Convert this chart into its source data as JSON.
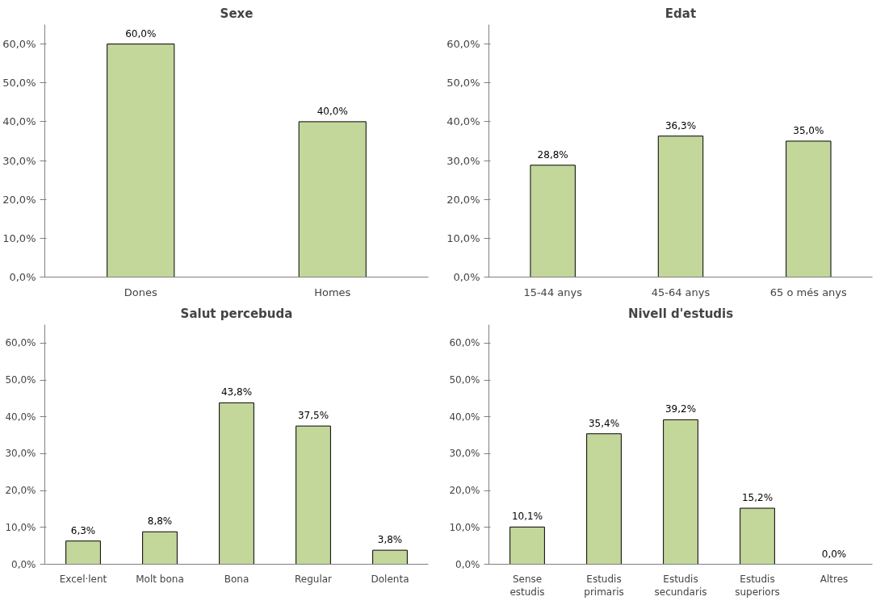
{
  "chart_data": [
    {
      "type": "bar",
      "title": "Sexe",
      "categories": [
        "Dones",
        "Homes"
      ],
      "values": [
        60.0,
        40.0
      ],
      "value_labels": [
        "60,0%",
        "40,0%"
      ],
      "color": "#c4d79b",
      "ylim": [
        0,
        65
      ],
      "yticks": [
        {
          "value": 0,
          "label": "0,0%"
        },
        {
          "value": 10,
          "label": "10,0%"
        },
        {
          "value": 20,
          "label": "20,0%"
        },
        {
          "value": 30,
          "label": "30,0%"
        },
        {
          "value": 40,
          "label": "40,0%"
        },
        {
          "value": 50,
          "label": "50,0%"
        },
        {
          "value": 60,
          "label": "60,0%"
        }
      ],
      "grid": false
    },
    {
      "type": "bar",
      "title": "Edat",
      "categories": [
        "15-44 anys",
        "45-64 anys",
        "65 o més anys"
      ],
      "values": [
        28.8,
        36.3,
        35.0
      ],
      "value_labels": [
        "28,8%",
        "36,3%",
        "35,0%"
      ],
      "color": "#c4d79b",
      "ylim": [
        0,
        65
      ],
      "yticks": [
        {
          "value": 0,
          "label": "0,0%"
        },
        {
          "value": 10,
          "label": "10,0%"
        },
        {
          "value": 20,
          "label": "20,0%"
        },
        {
          "value": 30,
          "label": "30,0%"
        },
        {
          "value": 40,
          "label": "40,0%"
        },
        {
          "value": 50,
          "label": "50,0%"
        },
        {
          "value": 60,
          "label": "60,0%"
        }
      ],
      "grid": false
    },
    {
      "type": "bar",
      "title": "Salut percebuda",
      "categories": [
        "Excel·lent",
        "Molt bona",
        "Bona",
        "Regular",
        "Dolenta"
      ],
      "values": [
        6.3,
        8.8,
        43.8,
        37.5,
        3.8
      ],
      "value_labels": [
        "6,3%",
        "8,8%",
        "43,8%",
        "37,5%",
        "3,8%"
      ],
      "color": "#c4d79b",
      "ylim": [
        0,
        65
      ],
      "yticks": [
        {
          "value": 0,
          "label": "0,0%"
        },
        {
          "value": 10,
          "label": "10,0%"
        },
        {
          "value": 20,
          "label": "20,0%"
        },
        {
          "value": 30,
          "label": "30,0%"
        },
        {
          "value": 40,
          "label": "40,0%"
        },
        {
          "value": 50,
          "label": "50,0%"
        },
        {
          "value": 60,
          "label": "60,0%"
        }
      ],
      "grid": false
    },
    {
      "type": "bar",
      "title": "Nivell d'estudis",
      "categories": [
        "Sense\nestudis",
        "Estudis\nprimaris",
        "Estudis\nsecundaris",
        "Estudis\nsuperiors",
        "Altres"
      ],
      "values": [
        10.1,
        35.4,
        39.2,
        15.2,
        0.0
      ],
      "value_labels": [
        "10,1%",
        "35,4%",
        "39,2%",
        "15,2%",
        "0,0%"
      ],
      "color": "#c4d79b",
      "ylim": [
        0,
        65
      ],
      "yticks": [
        {
          "value": 0,
          "label": "0,0%"
        },
        {
          "value": 10,
          "label": "10,0%"
        },
        {
          "value": 20,
          "label": "20,0%"
        },
        {
          "value": 30,
          "label": "30,0%"
        },
        {
          "value": 40,
          "label": "40,0%"
        },
        {
          "value": 50,
          "label": "50,0%"
        },
        {
          "value": 60,
          "label": "60,0%"
        }
      ],
      "grid": false
    }
  ]
}
